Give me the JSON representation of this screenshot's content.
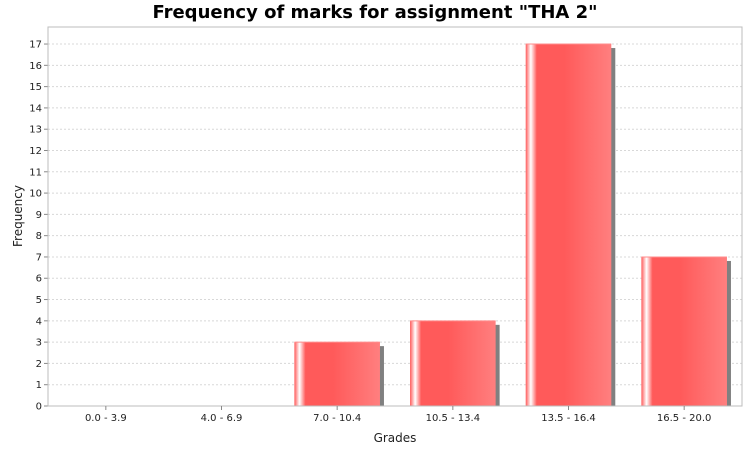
{
  "chart_data": {
    "type": "bar",
    "title": "Frequency of marks for assignment \"THA 2\"",
    "xlabel": "Grades",
    "ylabel": "Frequency",
    "categories": [
      "0.0 - 3.9",
      "4.0 - 6.9",
      "7.0 - 10.4",
      "10.5 - 13.4",
      "13.5 - 16.4",
      "16.5 - 20.0"
    ],
    "values": [
      0,
      0,
      3,
      4,
      17,
      7
    ],
    "ylim": [
      0,
      17.8
    ],
    "yticks": [
      0,
      1,
      2,
      3,
      4,
      5,
      6,
      7,
      8,
      9,
      10,
      11,
      12,
      13,
      14,
      15,
      16,
      17
    ],
    "grid": true,
    "bar_color": "#ff5a5a",
    "shadow_color": "#808080",
    "grid_color": "#d8d8d8"
  }
}
